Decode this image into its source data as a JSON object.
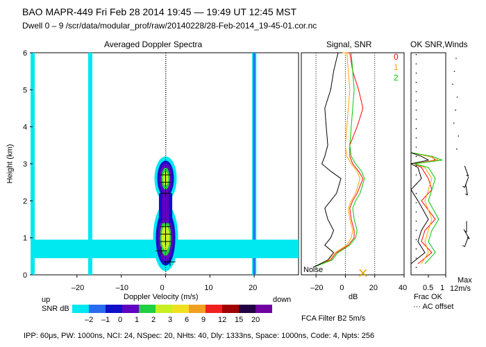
{
  "header": {
    "line1": "BAO  MAPR-449  Fri Feb 28 2014 19:45 — 19:49 UT 12:45 MST",
    "line2": "Dwell  0 –  9   /scr/data/modular_prof/raw/20140228/28-Feb-2014_19-45-01.cor.nc"
  },
  "footer": {
    "params": "IPP:  60μs,  PW: 1000ns,  NCI:  24,  NSpec: 20, NHts: 40,  Dly: 1333ns,  Space: 1000ns,  Code: 4,  Npts: 256",
    "filter": "FCA Filter B2   5m/s"
  },
  "colorbar": {
    "label": "SNR dB",
    "ticks": [
      "–2",
      "–1",
      "0",
      "1",
      "2",
      "3",
      "6",
      "9",
      "12",
      "15",
      "20"
    ],
    "colors": [
      "#00e8f0",
      "#2a6cf0",
      "#1010c8",
      "#6000c0",
      "#20d040",
      "#c8f020",
      "#f0e020",
      "#f0a020",
      "#f02020",
      "#a00000",
      "#200040",
      "#7000a0"
    ]
  },
  "chart_data": [
    {
      "type": "heatmap",
      "title": "Averaged Doppler Spectra",
      "xlabel": "Doppler Velocity (m/s)",
      "ylabel": "Height (km)",
      "xlim": [
        -30,
        30
      ],
      "ylim": [
        0,
        6
      ],
      "xticks": [
        "–20",
        "–10",
        "0",
        "10",
        "20"
      ],
      "yticks": [
        "0",
        "1",
        "2",
        "3",
        "4",
        "5",
        "6"
      ],
      "annotations": {
        "left": "up",
        "right": "down"
      },
      "echo_layers": [
        {
          "center_height": 2.6,
          "vmin": -4,
          "vmax": 4,
          "peak_snr_db": 3
        },
        {
          "center_height": 1.0,
          "vmin": -3,
          "vmax": 3,
          "peak_snr_db": 3
        },
        {
          "center_height": 0.7,
          "vmin": -30,
          "vmax": 30,
          "peak_snr_db": -2
        }
      ],
      "clutter_lines_velocity": [
        -30,
        -17,
        20
      ],
      "crosses": [
        {
          "v": 0,
          "h": 2.7
        },
        {
          "v": 0,
          "h": 2.5
        },
        {
          "v": 0,
          "h": 2.2
        },
        {
          "v": 0,
          "h": 1.3
        },
        {
          "v": 0,
          "h": 1.1
        },
        {
          "v": 0,
          "h": 0.9
        },
        {
          "v": -1,
          "h": 0.65
        },
        {
          "v": 1,
          "h": 0.35
        }
      ]
    },
    {
      "type": "line",
      "title": "Signal, SNR",
      "xlabel": "dB",
      "xlim": [
        -30,
        40
      ],
      "ylim": [
        0,
        6
      ],
      "xticks": [
        "–20",
        "0",
        "20",
        "40"
      ],
      "annotations": {
        "noise": "Noise"
      },
      "series": [
        {
          "name": "0",
          "color": "#ff0000",
          "x": [
            -22,
            -10,
            -6,
            2,
            6,
            6,
            4,
            3,
            5,
            8,
            12,
            9,
            5,
            3,
            3,
            8,
            12,
            9,
            5,
            3,
            2,
            1,
            0,
            0,
            0,
            0
          ],
          "y": [
            0.2,
            0.4,
            0.6,
            0.8,
            1.0,
            1.2,
            1.5,
            1.8,
            2.0,
            2.2,
            2.6,
            2.8,
            3.0,
            3.2,
            3.5,
            4.0,
            4.5,
            5.0,
            5.5,
            6.0,
            6.0,
            6.0,
            6.0,
            6.0,
            6.0,
            6.0
          ]
        },
        {
          "name": "1",
          "color": "#ffa500",
          "x": [
            -22,
            -11,
            -7,
            1,
            4,
            5,
            3,
            2,
            4,
            7,
            10,
            8,
            4,
            1,
            0,
            1,
            2,
            3,
            2,
            1,
            0,
            -1,
            -2,
            -2,
            -2,
            -2
          ],
          "y": [
            0.2,
            0.4,
            0.6,
            0.8,
            1.0,
            1.2,
            1.5,
            1.8,
            2.0,
            2.2,
            2.6,
            2.8,
            3.0,
            3.2,
            3.5,
            4.0,
            4.5,
            5.0,
            5.5,
            6.0,
            6.0,
            6.0,
            6.0,
            6.0,
            6.0,
            6.0
          ]
        },
        {
          "name": "2",
          "color": "#00c800",
          "x": [
            -22,
            -9,
            -5,
            3,
            7,
            8,
            6,
            5,
            7,
            10,
            13,
            11,
            7,
            4,
            3,
            4,
            5,
            6,
            5,
            4,
            4,
            4,
            4,
            4,
            4,
            4
          ],
          "y": [
            0.2,
            0.4,
            0.6,
            0.8,
            1.0,
            1.2,
            1.5,
            1.8,
            2.0,
            2.2,
            2.6,
            2.8,
            3.0,
            3.2,
            3.5,
            4.0,
            4.5,
            5.0,
            5.5,
            6.0,
            6.0,
            6.0,
            6.0,
            6.0,
            6.0,
            6.0
          ]
        },
        {
          "color": "#000000",
          "x": [
            -22,
            -12,
            -8,
            -14,
            -10,
            -8,
            -12,
            -14,
            -10,
            -6,
            -3,
            -10,
            -16,
            -14,
            -12,
            -13,
            -14,
            -10,
            -8,
            -5,
            -5,
            -5,
            -5,
            -5,
            -5,
            -5
          ],
          "y": [
            0.2,
            0.4,
            0.6,
            0.8,
            1.0,
            1.2,
            1.5,
            1.8,
            2.0,
            2.2,
            2.6,
            2.8,
            3.0,
            3.2,
            3.5,
            4.0,
            4.5,
            5.0,
            5.5,
            6.0,
            6.0,
            6.0,
            6.0,
            6.0,
            6.0,
            6.0
          ]
        }
      ]
    },
    {
      "type": "line",
      "title": "OK SNR,Winds",
      "xlabel": "Frac OK",
      "xlim": [
        0,
        1
      ],
      "ylim": [
        0,
        6
      ],
      "xticks": [
        "0.5",
        "1"
      ],
      "annotations": {
        "ac_offset": "··· AC offset",
        "max_label": "Max",
        "max_value": "12m/s"
      },
      "series": [
        {
          "name": "0",
          "color": "#ff0000",
          "x": [
            0.2,
            0.6,
            0.3,
            0.4,
            0.7,
            0.3,
            0.6,
            0.5,
            0.3,
            0.1,
            0.7,
            0.6,
            0.0
          ],
          "y": [
            0.3,
            0.6,
            0.9,
            1.2,
            1.5,
            2.0,
            2.3,
            2.6,
            2.9,
            3.0,
            3.1,
            3.2,
            3.3
          ]
        },
        {
          "name": "1",
          "color": "#ffa500",
          "x": [
            0.3,
            0.5,
            0.4,
            0.5,
            0.6,
            0.4,
            0.5,
            0.6,
            0.4,
            0.1,
            0.8,
            0.5,
            0.0
          ],
          "y": [
            0.3,
            0.6,
            0.9,
            1.2,
            1.5,
            2.0,
            2.3,
            2.6,
            2.9,
            3.0,
            3.1,
            3.2,
            3.3
          ]
        },
        {
          "name": "2",
          "color": "#00c800",
          "x": [
            0.4,
            0.7,
            0.5,
            0.6,
            0.8,
            0.5,
            0.6,
            0.7,
            0.5,
            0.1,
            0.9,
            0.6,
            0.0
          ],
          "y": [
            0.3,
            0.6,
            0.9,
            1.2,
            1.5,
            2.0,
            2.3,
            2.6,
            2.9,
            3.0,
            3.1,
            3.2,
            3.3
          ]
        },
        {
          "color": "#000000",
          "x": [
            0.0,
            0.4,
            0.2,
            0.3,
            0.5,
            0.2,
            0.0,
            0.3,
            0.2,
            0.0,
            0.5,
            0.3,
            0.0
          ],
          "y": [
            0.3,
            0.6,
            0.9,
            1.2,
            1.5,
            2.0,
            2.3,
            2.6,
            2.9,
            3.0,
            3.1,
            3.2,
            3.3
          ]
        }
      ],
      "wind_barbs": [
        {
          "h": 2.8,
          "dir": 160
        },
        {
          "h": 2.5,
          "dir": 200
        },
        {
          "h": 2.3,
          "dir": 170
        },
        {
          "h": 1.3,
          "dir": 180
        },
        {
          "h": 1.1,
          "dir": 150
        },
        {
          "h": 0.9,
          "dir": 200
        }
      ]
    }
  ]
}
